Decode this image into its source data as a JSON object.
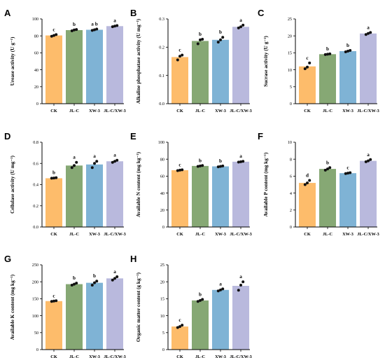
{
  "colors": {
    "CK": "#fdbc6b",
    "JL-C": "#86a874",
    "XW-3": "#7fb3d5",
    "JL-C/XW-3": "#b9b9dd",
    "axis": "#000000",
    "point": "#111111"
  },
  "chart_data": [
    {
      "type": "bar",
      "panel": "A",
      "ylabel": "Urease activity  (U g⁻¹)",
      "categories": [
        "CK",
        "JL-C",
        "XW-3",
        "JL-C/XW-3"
      ],
      "values": [
        80.5,
        86.8,
        87.2,
        91.5
      ],
      "points": [
        [
          79.5,
          81.5,
          80.5
        ],
        [
          86,
          87.5,
          87
        ],
        [
          86.5,
          88,
          87.2
        ],
        [
          90.8,
          92.2,
          91.5
        ]
      ],
      "letters": [
        "c",
        "b",
        "a b",
        "a"
      ],
      "ylim": [
        0,
        100
      ],
      "yticks": [
        0,
        20,
        40,
        60,
        80,
        100
      ]
    },
    {
      "type": "bar",
      "panel": "B",
      "ylabel": "Alkaline phosphatase activity (U mg⁻¹)",
      "categories": [
        "CK",
        "JL-C",
        "XW-3",
        "JL-C/XW-3"
      ],
      "values": [
        0.165,
        0.222,
        0.226,
        0.272
      ],
      "points": [
        [
          0.155,
          0.172,
          0.168
        ],
        [
          0.212,
          0.228,
          0.226
        ],
        [
          0.218,
          0.235,
          0.226
        ],
        [
          0.268,
          0.278,
          0.272
        ]
      ],
      "letters": [
        "c",
        "b",
        "b",
        "a"
      ],
      "ylim": [
        0,
        0.3
      ],
      "yticks": [
        0.0,
        0.1,
        0.2,
        0.3
      ]
    },
    {
      "type": "bar",
      "panel": "C",
      "ylabel": "Sucrase activity  (U g⁻¹)",
      "categories": [
        "CK",
        "JL-C",
        "XW-3",
        "JL-C/XW-3"
      ],
      "values": [
        11.0,
        14.6,
        15.5,
        20.7
      ],
      "points": [
        [
          10.3,
          12.0,
          10.8
        ],
        [
          14.5,
          14.7,
          14.6
        ],
        [
          15.3,
          15.7,
          15.5
        ],
        [
          20.4,
          21.0,
          20.7
        ]
      ],
      "letters": [
        "c",
        "b",
        "b",
        "a"
      ],
      "ylim": [
        0,
        25
      ],
      "yticks": [
        0,
        5,
        10,
        15,
        20,
        25
      ]
    },
    {
      "type": "bar",
      "panel": "D",
      "ylabel": "Cellulase activity (U mg⁻¹)",
      "categories": [
        "CK",
        "JL-C",
        "XW-3",
        "JL-C/XW-3"
      ],
      "values": [
        0.46,
        0.58,
        0.59,
        0.62
      ],
      "points": [
        [
          0.46,
          0.465,
          0.462
        ],
        [
          0.56,
          0.61,
          0.58
        ],
        [
          0.56,
          0.62,
          0.6
        ],
        [
          0.61,
          0.63,
          0.62
        ]
      ],
      "letters": [
        "b",
        "a",
        "a",
        "a"
      ],
      "ylim": [
        0,
        0.8
      ],
      "yticks": [
        0.0,
        0.2,
        0.4,
        0.6,
        0.8
      ]
    },
    {
      "type": "bar",
      "panel": "E",
      "ylabel": "Available N content  (mg kg⁻¹)",
      "categories": [
        "CK",
        "JL-C",
        "XW-3",
        "JL-C/XW-3"
      ],
      "values": [
        67.0,
        72.0,
        71.5,
        77.0
      ],
      "points": [
        [
          66.5,
          67.5,
          67
        ],
        [
          71.5,
          72.5,
          72
        ],
        [
          71,
          72,
          71.5
        ],
        [
          76.5,
          77.5,
          77
        ]
      ],
      "letters": [
        "c",
        "b",
        "b",
        "a"
      ],
      "ylim": [
        0,
        100
      ],
      "yticks": [
        0,
        20,
        40,
        60,
        80,
        100
      ]
    },
    {
      "type": "bar",
      "panel": "F",
      "ylabel": "Available P content  (mg kg⁻¹)",
      "categories": [
        "CK",
        "JL-C",
        "XW-3",
        "JL-C/XW-3"
      ],
      "values": [
        5.2,
        6.85,
        6.35,
        7.8
      ],
      "points": [
        [
          5.0,
          5.5,
          5.2
        ],
        [
          6.7,
          7.0,
          6.85
        ],
        [
          6.3,
          6.4,
          6.35
        ],
        [
          7.7,
          7.95,
          7.8
        ]
      ],
      "letters": [
        "d",
        "b",
        "c",
        "a"
      ],
      "ylim": [
        0,
        10
      ],
      "yticks": [
        0,
        2,
        4,
        6,
        8,
        10
      ]
    },
    {
      "type": "bar",
      "panel": "G",
      "ylabel": "Available K content  (mg kg⁻¹)",
      "categories": [
        "CK",
        "JL-C",
        "XW-3",
        "JL-C/XW-3"
      ],
      "values": [
        143,
        193,
        197,
        210
      ],
      "points": [
        [
          142,
          144,
          143
        ],
        [
          190,
          196,
          193
        ],
        [
          190,
          202,
          197
        ],
        [
          205,
          215,
          210
        ]
      ],
      "letters": [
        "c",
        "b",
        "b",
        "a"
      ],
      "ylim": [
        0,
        250
      ],
      "yticks": [
        0,
        50,
        100,
        150,
        200,
        250
      ]
    },
    {
      "type": "bar",
      "panel": "H",
      "ylabel": "Organic matter content  (g kg⁻¹)",
      "categories": [
        "CK",
        "JL-C",
        "XW-3",
        "JL-C/XW-3"
      ],
      "values": [
        6.8,
        14.5,
        17.6,
        18.8
      ],
      "points": [
        [
          6.5,
          7.2,
          6.8
        ],
        [
          14.2,
          14.8,
          14.5
        ],
        [
          17.3,
          17.9,
          17.6
        ],
        [
          17.5,
          20.0,
          19.0
        ]
      ],
      "letters": [
        "c",
        "b",
        "a",
        "a"
      ],
      "ylim": [
        0,
        25
      ],
      "yticks": [
        0,
        5,
        10,
        15,
        20,
        25
      ]
    }
  ]
}
